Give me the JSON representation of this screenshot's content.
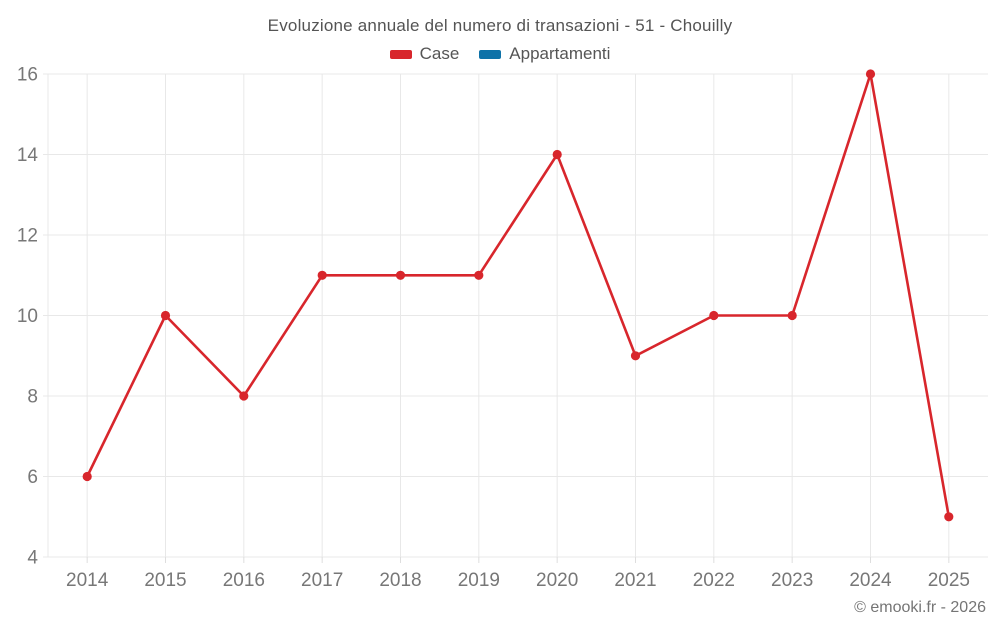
{
  "page": {
    "footer": "© emooki.fr - 2026"
  },
  "chart_data": {
    "type": "line",
    "title": "Evoluzione annuale del numero di transazioni - 51 - Chouilly",
    "categories": [
      "2014",
      "2015",
      "2016",
      "2017",
      "2018",
      "2019",
      "2020",
      "2021",
      "2022",
      "2023",
      "2024",
      "2025"
    ],
    "series": [
      {
        "name": "Case",
        "color": "#d8262c",
        "values": [
          6,
          10,
          8,
          11,
          11,
          11,
          14,
          9,
          10,
          10,
          16,
          5
        ]
      },
      {
        "name": "Appartamenti",
        "color": "#0e72a8",
        "values": []
      }
    ],
    "yticks": [
      4,
      6,
      8,
      10,
      12,
      14,
      16
    ],
    "ylim": [
      4,
      16
    ],
    "xlabel": "",
    "ylabel": "",
    "grid": true,
    "legend_position": "top"
  },
  "colors": {
    "grid": "#e8e8e8",
    "axis": "#dedede",
    "tick_label": "#777777",
    "title": "#545454",
    "legend_label": "#555555",
    "footer": "#757575",
    "background": "#ffffff"
  }
}
